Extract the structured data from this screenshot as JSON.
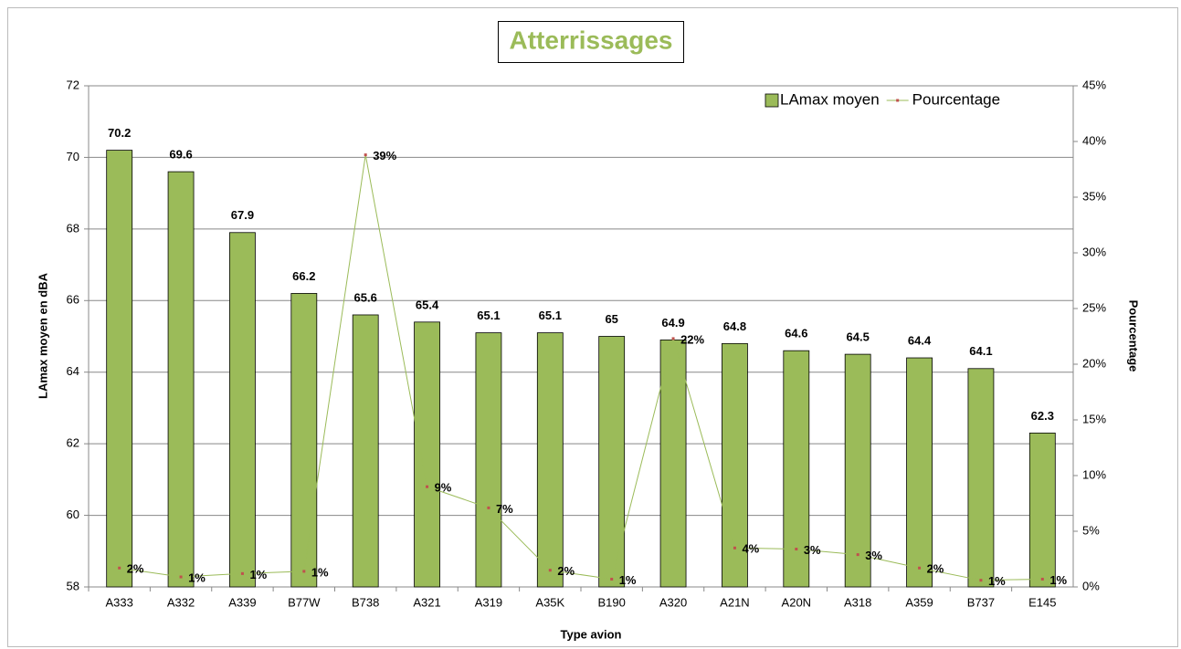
{
  "chart_data": {
    "type": "bar",
    "title": "Atterrissages",
    "x_label": "Type avion",
    "y_label": "LAmax moyen en dBA",
    "y2_label": "Pourcentage",
    "categories": [
      "A333",
      "A332",
      "A339",
      "B77W",
      "B738",
      "A321",
      "A319",
      "A35K",
      "B190",
      "A320",
      "A21N",
      "A20N",
      "A318",
      "A359",
      "B737",
      "E145"
    ],
    "series": [
      {
        "name": "LAmax moyen",
        "color": "#9bbb59",
        "values": [
          70.2,
          69.6,
          67.9,
          66.2,
          65.6,
          65.4,
          65.1,
          65.1,
          65,
          64.9,
          64.8,
          64.6,
          64.5,
          64.4,
          64.1,
          62.3
        ]
      },
      {
        "name": "Pourcentage",
        "type": "line",
        "axis": "y2",
        "color": "#9bbb59",
        "marker_color": "#c0504d",
        "values": [
          1.7,
          0.9,
          1.2,
          1.4,
          38.8,
          9.0,
          7.1,
          1.5,
          0.7,
          22.3,
          3.5,
          3.4,
          2.9,
          1.7,
          0.6,
          0.7
        ],
        "value_labels": [
          "2%",
          "1%",
          "1%",
          "1%",
          "39%",
          "9%",
          "7%",
          "2%",
          "1%",
          "22%",
          "4%",
          "3%",
          "3%",
          "2%",
          "1%",
          "1%"
        ]
      }
    ],
    "ylim": [
      58,
      72
    ],
    "yticks": [
      58,
      60,
      62,
      64,
      66,
      68,
      70,
      72
    ],
    "y2lim": [
      0,
      45
    ],
    "y2ticks": [
      {
        "value": 0,
        "label": "0%"
      },
      {
        "value": 5,
        "label": "5%"
      },
      {
        "value": 10,
        "label": "10%"
      },
      {
        "value": 15,
        "label": "15%"
      },
      {
        "value": 20,
        "label": "20%"
      },
      {
        "value": 25,
        "label": "25%"
      },
      {
        "value": 30,
        "label": "30%"
      },
      {
        "value": 35,
        "label": "35%"
      },
      {
        "value": 40,
        "label": "40%"
      },
      {
        "value": 45,
        "label": "45%"
      }
    ],
    "grid": true,
    "legend": "top-right"
  }
}
